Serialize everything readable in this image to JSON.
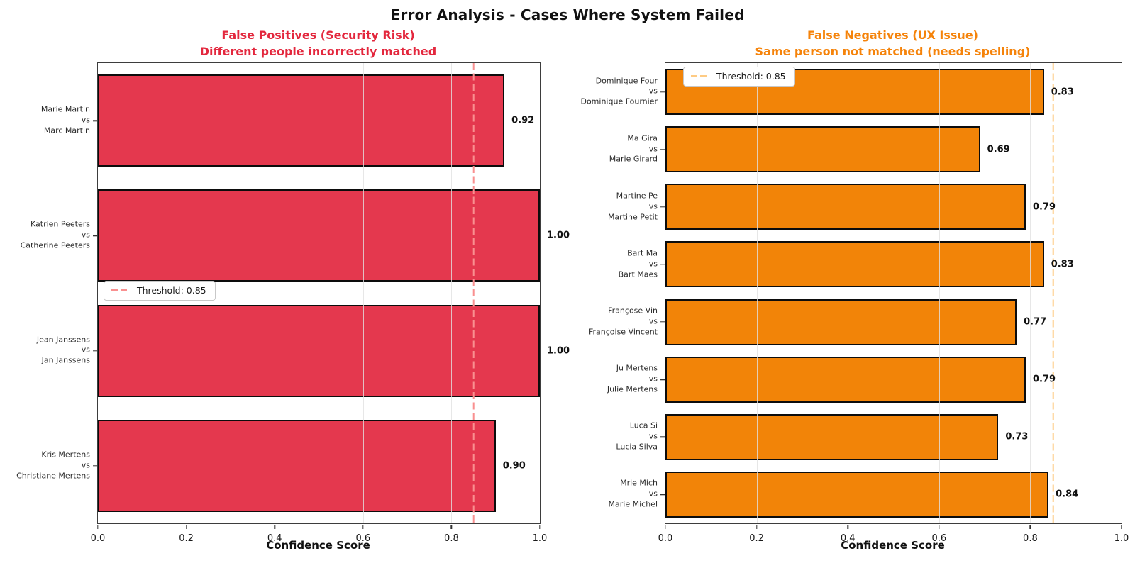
{
  "figure": {
    "title": "Error Analysis - Cases Where System Failed",
    "background": "#ffffff"
  },
  "chart_data": [
    {
      "type": "bar",
      "orientation": "horizontal",
      "title_lines": [
        "False Positives (Security Risk)",
        "Different people incorrectly matched"
      ],
      "title_color": "#e3273d",
      "bar_color": "#e4384e",
      "bar_edge_color": "#0c0c0c",
      "grid": true,
      "xlabel": "Confidence Score",
      "xlim": [
        0.0,
        1.0
      ],
      "xticks": [
        "0.0",
        "0.2",
        "0.4",
        "0.6",
        "0.8",
        "1.0"
      ],
      "vs_label": "vs",
      "threshold": {
        "value": 0.85,
        "label": "Threshold: 0.85",
        "color": "#f99090"
      },
      "legend_position": "middle-left",
      "rows": [
        {
          "top_name": "Marie Martin",
          "bottom_name": "Marc Martin",
          "value": 0.92,
          "label": "0.92"
        },
        {
          "top_name": "Katrien Peeters",
          "bottom_name": "Catherine Peeters",
          "value": 1.0,
          "label": "1.00"
        },
        {
          "top_name": "Jean Janssens",
          "bottom_name": "Jan Janssens",
          "value": 1.0,
          "label": "1.00"
        },
        {
          "top_name": "Kris Mertens",
          "bottom_name": "Christiane Mertens",
          "value": 0.9,
          "label": "0.90"
        }
      ]
    },
    {
      "type": "bar",
      "orientation": "horizontal",
      "title_lines": [
        "False Negatives (UX Issue)",
        "Same person not matched (needs spelling)"
      ],
      "title_color": "#f5830a",
      "bar_color": "#f28408",
      "bar_edge_color": "#0c0c0c",
      "grid": true,
      "xlabel": "Confidence Score",
      "xlim": [
        0.0,
        1.0
      ],
      "xticks": [
        "0.0",
        "0.2",
        "0.4",
        "0.6",
        "0.8",
        "1.0"
      ],
      "vs_label": "vs",
      "threshold": {
        "value": 0.85,
        "label": "Threshold: 0.85",
        "color": "#fecb84"
      },
      "legend_position": "top-left",
      "rows": [
        {
          "top_name": "Dominique Four",
          "bottom_name": "Dominique Fournier",
          "value": 0.83,
          "label": "0.83"
        },
        {
          "top_name": "Ma Gira",
          "bottom_name": "Marie Girard",
          "value": 0.69,
          "label": "0.69"
        },
        {
          "top_name": "Martine Pe",
          "bottom_name": "Martine Petit",
          "value": 0.79,
          "label": "0.79"
        },
        {
          "top_name": "Bart Ma",
          "bottom_name": "Bart Maes",
          "value": 0.83,
          "label": "0.83"
        },
        {
          "top_name": "Françose Vin",
          "bottom_name": "Françoise Vincent",
          "value": 0.77,
          "label": "0.77"
        },
        {
          "top_name": "Ju Mertens",
          "bottom_name": "Julie Mertens",
          "value": 0.79,
          "label": "0.79"
        },
        {
          "top_name": "Luca Si",
          "bottom_name": "Lucia Silva",
          "value": 0.73,
          "label": "0.73"
        },
        {
          "top_name": "Mrie Mich",
          "bottom_name": "Marie Michel",
          "value": 0.84,
          "label": "0.84"
        }
      ]
    }
  ]
}
